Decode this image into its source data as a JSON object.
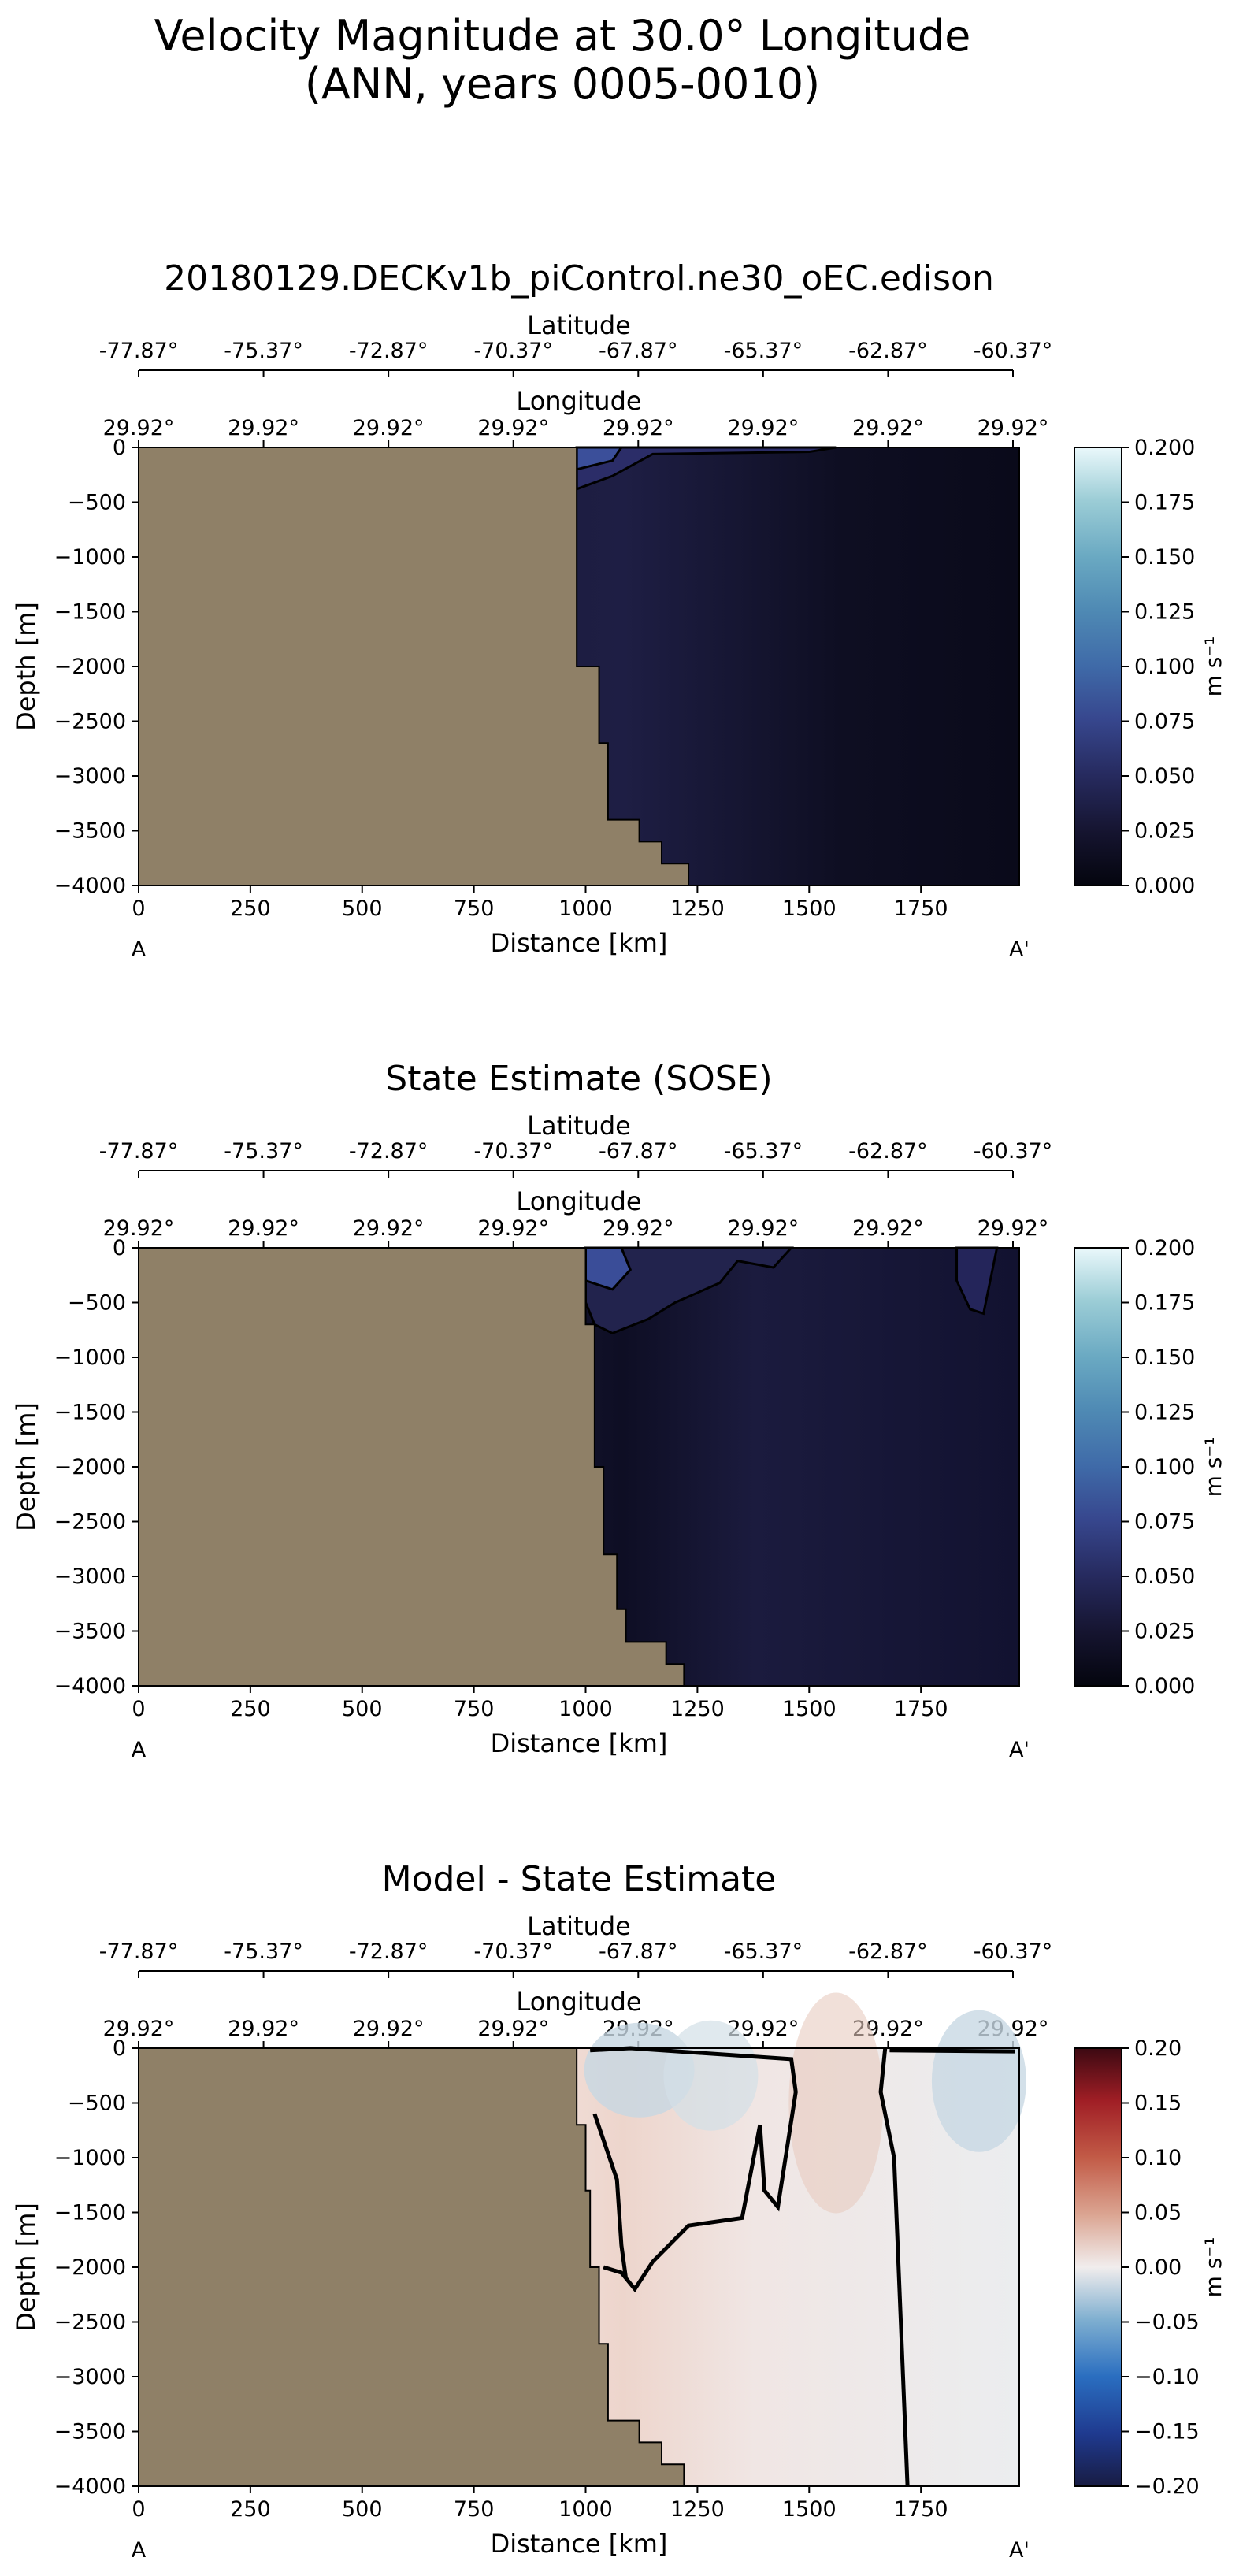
{
  "figure": {
    "title_line1": "Velocity Magnitude at 30.0° Longitude",
    "title_line2": "(ANN, years 0005-0010)"
  },
  "colors": {
    "land": "#8f8067",
    "section_dark": "#0f0f26",
    "section_mid": "#1c1c40",
    "contour": "#000000"
  },
  "chart_data": [
    {
      "type": "heatmap",
      "title": "20180129.DECKv1b_piControl.ne30_oEC.edison",
      "xlabel": "Distance [km]",
      "ylabel": "Depth [m]",
      "xlim": [
        0,
        1970
      ],
      "ylim": [
        -4000,
        0
      ],
      "x_ticks": [
        "0",
        "250",
        "500",
        "750",
        "1000",
        "1250",
        "1500",
        "1750"
      ],
      "y_ticks": [
        "0",
        "−500",
        "−1000",
        "−1500",
        "−2000",
        "−2500",
        "−3000",
        "−3500",
        "−4000"
      ],
      "start_label": "A",
      "end_label": "A'",
      "lat_axis_label": "Latitude",
      "lat_ticks": [
        "-77.87°",
        "-75.37°",
        "-72.87°",
        "-70.37°",
        "-67.87°",
        "-65.37°",
        "-62.87°",
        "-60.37°"
      ],
      "lon_axis_label": "Longitude",
      "lon_ticks": [
        "29.92°",
        "29.92°",
        "29.92°",
        "29.92°",
        "29.92°",
        "29.92°",
        "29.92°",
        "29.92°"
      ],
      "colorbar": {
        "label": "m s⁻¹",
        "colormap": "ice",
        "range": [
          0,
          0.2
        ],
        "ticks": [
          "0.200",
          "0.175",
          "0.150",
          "0.125",
          "0.100",
          "0.075",
          "0.050",
          "0.025",
          "0.000"
        ]
      },
      "land_boundary_km_depth": [
        [
          980,
          0
        ],
        [
          980,
          -2000
        ],
        [
          1030,
          -2000
        ],
        [
          1030,
          -2700
        ],
        [
          1050,
          -2700
        ],
        [
          1050,
          -3400
        ],
        [
          1120,
          -3400
        ],
        [
          1120,
          -3600
        ],
        [
          1170,
          -3600
        ],
        [
          1170,
          -3800
        ],
        [
          1230,
          -3800
        ],
        [
          1230,
          -4000
        ]
      ]
    },
    {
      "type": "heatmap",
      "title": "State Estimate (SOSE)",
      "xlabel": "Distance [km]",
      "ylabel": "Depth [m]",
      "xlim": [
        0,
        1970
      ],
      "ylim": [
        -4000,
        0
      ],
      "x_ticks": [
        "0",
        "250",
        "500",
        "750",
        "1000",
        "1250",
        "1500",
        "1750"
      ],
      "y_ticks": [
        "0",
        "−500",
        "−1000",
        "−1500",
        "−2000",
        "−2500",
        "−3000",
        "−3500",
        "−4000"
      ],
      "start_label": "A",
      "end_label": "A'",
      "lat_axis_label": "Latitude",
      "lat_ticks": [
        "-77.87°",
        "-75.37°",
        "-72.87°",
        "-70.37°",
        "-67.87°",
        "-65.37°",
        "-62.87°",
        "-60.37°"
      ],
      "lon_axis_label": "Longitude",
      "lon_ticks": [
        "29.92°",
        "29.92°",
        "29.92°",
        "29.92°",
        "29.92°",
        "29.92°",
        "29.92°",
        "29.92°"
      ],
      "colorbar": {
        "label": "m s⁻¹",
        "colormap": "ice",
        "range": [
          0,
          0.2
        ],
        "ticks": [
          "0.200",
          "0.175",
          "0.150",
          "0.125",
          "0.100",
          "0.075",
          "0.050",
          "0.025",
          "0.000"
        ]
      },
      "land_boundary_km_depth": [
        [
          1000,
          0
        ],
        [
          1000,
          -700
        ],
        [
          1020,
          -700
        ],
        [
          1020,
          -2000
        ],
        [
          1040,
          -2000
        ],
        [
          1040,
          -2800
        ],
        [
          1070,
          -2800
        ],
        [
          1070,
          -3300
        ],
        [
          1090,
          -3300
        ],
        [
          1090,
          -3600
        ],
        [
          1180,
          -3600
        ],
        [
          1180,
          -3800
        ],
        [
          1220,
          -3800
        ],
        [
          1220,
          -4000
        ]
      ]
    },
    {
      "type": "heatmap",
      "title": "Model - State Estimate",
      "xlabel": "Distance [km]",
      "ylabel": "Depth [m]",
      "xlim": [
        0,
        1970
      ],
      "ylim": [
        -4000,
        0
      ],
      "x_ticks": [
        "0",
        "250",
        "500",
        "750",
        "1000",
        "1250",
        "1500",
        "1750"
      ],
      "y_ticks": [
        "0",
        "−500",
        "−1000",
        "−1500",
        "−2000",
        "−2500",
        "−3000",
        "−3500",
        "−4000"
      ],
      "start_label": "A",
      "end_label": "A'",
      "lat_axis_label": "Latitude",
      "lat_ticks": [
        "-77.87°",
        "-75.37°",
        "-72.87°",
        "-70.37°",
        "-67.87°",
        "-65.37°",
        "-62.87°",
        "-60.37°"
      ],
      "lon_axis_label": "Longitude",
      "lon_ticks": [
        "29.92°",
        "29.92°",
        "29.92°",
        "29.92°",
        "29.92°",
        "29.92°",
        "29.92°",
        "29.92°"
      ],
      "colorbar": {
        "label": "m s⁻¹",
        "colormap": "balance",
        "range": [
          -0.2,
          0.2
        ],
        "ticks": [
          "0.20",
          "0.15",
          "0.10",
          "0.05",
          "0.00",
          "−0.05",
          "−0.10",
          "−0.15",
          "−0.20"
        ]
      },
      "land_boundary_km_depth": [
        [
          980,
          0
        ],
        [
          980,
          -700
        ],
        [
          1000,
          -700
        ],
        [
          1000,
          -1300
        ],
        [
          1010,
          -1300
        ],
        [
          1010,
          -2000
        ],
        [
          1030,
          -2000
        ],
        [
          1030,
          -2700
        ],
        [
          1050,
          -2700
        ],
        [
          1050,
          -3400
        ],
        [
          1120,
          -3400
        ],
        [
          1120,
          -3600
        ],
        [
          1170,
          -3600
        ],
        [
          1170,
          -3800
        ],
        [
          1220,
          -3800
        ],
        [
          1220,
          -4000
        ]
      ]
    }
  ]
}
